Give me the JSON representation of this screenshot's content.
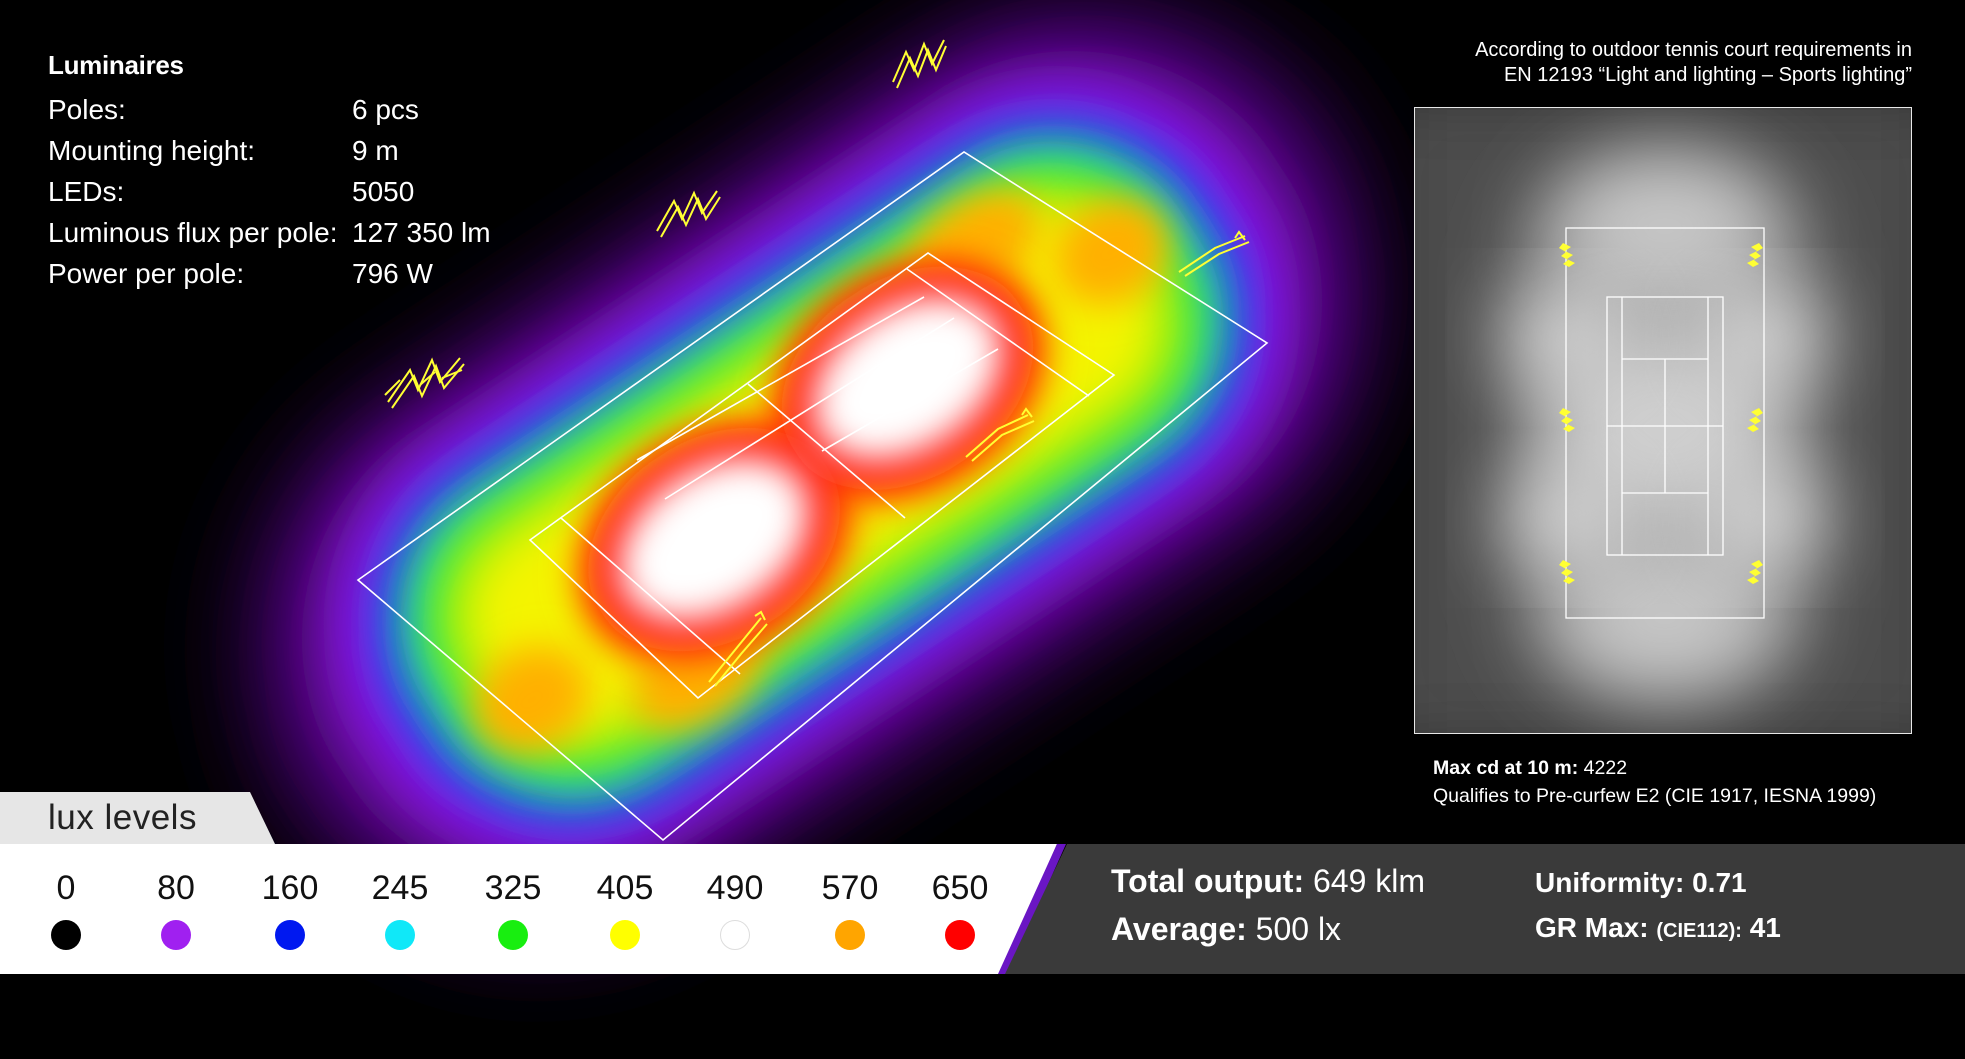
{
  "luminaires": {
    "title": "Luminaires",
    "rows": [
      {
        "label": "Poles:",
        "value": "6 pcs"
      },
      {
        "label": "Mounting height:",
        "value": "9 m"
      },
      {
        "label": "LEDs:",
        "value": "5050"
      },
      {
        "label": "Luminous flux per pole:",
        "value": "127 350 lm"
      },
      {
        "label": "Power per pole:",
        "value": "796 W"
      }
    ]
  },
  "standard_note": {
    "line1": "According to outdoor tennis court requirements in",
    "line2": "EN 12193 “Light and lighting – Sports lighting”"
  },
  "preview": {
    "maxcd_label": "Max cd at 10 m:",
    "maxcd_value": "4222",
    "qualifies": "Qualifies to Pre-curfew E2 (CIE 1917, IESNA 1999)"
  },
  "legend": {
    "title": "lux levels",
    "levels": [
      {
        "value": "0",
        "color": "#000000"
      },
      {
        "value": "80",
        "color": "#a020f0"
      },
      {
        "value": "160",
        "color": "#0018f0"
      },
      {
        "value": "245",
        "color": "#10e8f8"
      },
      {
        "value": "325",
        "color": "#18ee10"
      },
      {
        "value": "405",
        "color": "#ffff00"
      },
      {
        "value": "490",
        "color": "#ffffff"
      },
      {
        "value": "570",
        "color": "#ffa500"
      },
      {
        "value": "650",
        "color": "#ff0000"
      }
    ]
  },
  "stats": {
    "total_output_label": "Total output:",
    "total_output_value": "649 klm",
    "average_label": "Average:",
    "average_value": "500 lx",
    "uniformity_label": "Uniformity:",
    "uniformity_value": "0.71",
    "gr_label": "GR Max:",
    "gr_note": "(CIE112):",
    "gr_value": "41"
  },
  "colors": {
    "background": "#000000",
    "luminaire": "#ffff33",
    "stats_panel": "#3a3a3a",
    "legend_panel": "#ffffff"
  },
  "icons": [
    "luminaire-icon",
    "tennis-court-lines"
  ]
}
